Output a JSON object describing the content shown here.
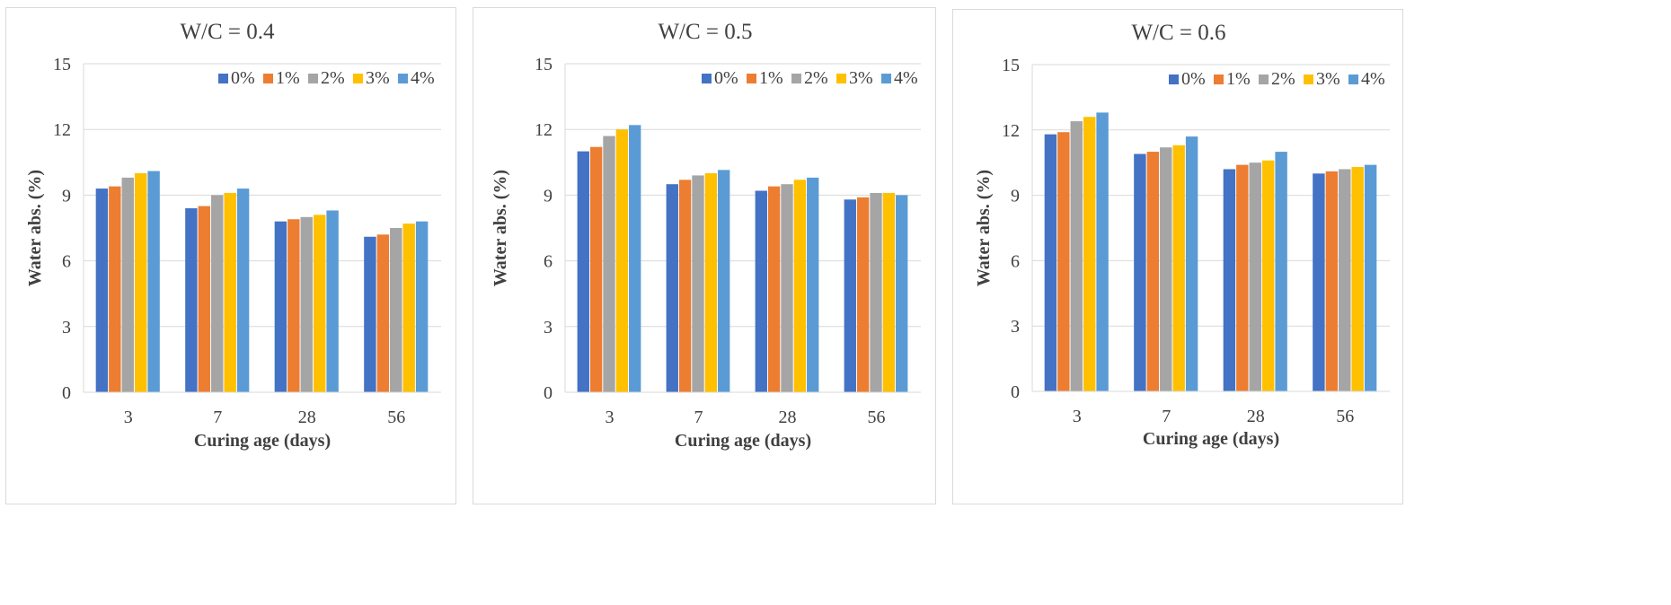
{
  "legend_colors": [
    "#4472c4",
    "#ed7d31",
    "#a5a5a5",
    "#ffc000",
    "#5b9bd5"
  ],
  "chart_data": [
    {
      "type": "bar",
      "title": "W/C = 0.4",
      "xlabel": "Curing age (days)",
      "ylabel": "Water abs. (%)",
      "ylim": [
        0,
        15
      ],
      "yticks": [
        "0",
        "3",
        "6",
        "9",
        "12",
        "15"
      ],
      "categories": [
        "3",
        "7",
        "28",
        "56"
      ],
      "legend_position": "top-right",
      "series": [
        {
          "name": "0%",
          "values": [
            9.3,
            8.4,
            7.8,
            7.1
          ]
        },
        {
          "name": "1%",
          "values": [
            9.4,
            8.5,
            7.9,
            7.2
          ]
        },
        {
          "name": "2%",
          "values": [
            9.8,
            9.0,
            8.0,
            7.5
          ]
        },
        {
          "name": "3%",
          "values": [
            10.0,
            9.1,
            8.1,
            7.7
          ]
        },
        {
          "name": "4%",
          "values": [
            10.1,
            9.3,
            8.3,
            7.8
          ]
        }
      ]
    },
    {
      "type": "bar",
      "title": "W/C = 0.5",
      "xlabel": "Curing age (days)",
      "ylabel": "Water abs. (%)",
      "ylim": [
        0,
        15
      ],
      "yticks": [
        "0",
        "3",
        "6",
        "9",
        "12",
        "15"
      ],
      "categories": [
        "3",
        "7",
        "28",
        "56"
      ],
      "legend_position": "top-right",
      "series": [
        {
          "name": "0%",
          "values": [
            11.0,
            9.5,
            9.2,
            8.8
          ]
        },
        {
          "name": "1%",
          "values": [
            11.2,
            9.7,
            9.4,
            8.9
          ]
        },
        {
          "name": "2%",
          "values": [
            11.7,
            9.9,
            9.5,
            9.1
          ]
        },
        {
          "name": "3%",
          "values": [
            12.0,
            10.0,
            9.7,
            9.1
          ]
        },
        {
          "name": "4%",
          "values": [
            12.2,
            10.15,
            9.8,
            9.0
          ]
        }
      ]
    },
    {
      "type": "bar",
      "title": "W/C = 0.6",
      "xlabel": "Curing age (days)",
      "ylabel": "Water abs. (%)",
      "ylim": [
        0,
        15
      ],
      "yticks": [
        "0",
        "3",
        "6",
        "9",
        "12",
        "15"
      ],
      "categories": [
        "3",
        "7",
        "28",
        "56"
      ],
      "legend_position": "top-right",
      "series": [
        {
          "name": "0%",
          "values": [
            11.8,
            10.9,
            10.2,
            10.0
          ]
        },
        {
          "name": "1%",
          "values": [
            11.9,
            11.0,
            10.4,
            10.1
          ]
        },
        {
          "name": "2%",
          "values": [
            12.4,
            11.2,
            10.5,
            10.2
          ]
        },
        {
          "name": "3%",
          "values": [
            12.6,
            11.3,
            10.6,
            10.3
          ]
        },
        {
          "name": "4%",
          "values": [
            12.8,
            11.7,
            11.0,
            10.4
          ]
        }
      ]
    }
  ]
}
